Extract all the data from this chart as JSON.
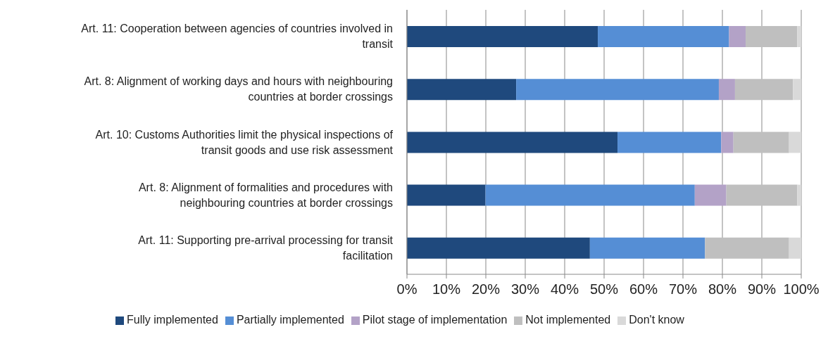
{
  "chart_data": {
    "type": "bar",
    "orientation": "horizontal",
    "stacked": true,
    "categories": [
      "Art. 11: Cooperation between agencies of countries involved in transit",
      "Art. 8: Alignment of working days and hours with neighbouring countries at border crossings",
      "Art. 10: Customs Authorities limit the physical inspections of transit goods and use risk assessment",
      "Art. 8: Alignment of formalities and procedures with neighbouring countries at border crossings",
      "Art. 11: Supporting pre-arrival processing for transit facilitation"
    ],
    "series": [
      {
        "name": "Fully implemented",
        "color": "#1f497d",
        "values": [
          48.4,
          27.7,
          53.4,
          19.9,
          46.4
        ]
      },
      {
        "name": "Partially implemented",
        "color": "#558ed5",
        "values": [
          33.3,
          51.4,
          26.3,
          53.1,
          29.2
        ]
      },
      {
        "name": "Pilot stage of implementation",
        "color": "#b3a2c7",
        "values": [
          4.2,
          4.1,
          3.1,
          8.0,
          0
        ]
      },
      {
        "name": "Not implemented",
        "color": "#bfbfbf",
        "values": [
          13.1,
          14.7,
          14.1,
          18.0,
          21.3
        ]
      },
      {
        "name": "Don't know",
        "color": "#d9d9d9",
        "values": [
          1.0,
          2.1,
          3.1,
          1.0,
          3.1
        ]
      }
    ],
    "xlim": [
      0,
      100
    ],
    "xticks": [
      {
        "value": 0,
        "label": "0%"
      },
      {
        "value": 10,
        "label": "10%"
      },
      {
        "value": 20,
        "label": "20%"
      },
      {
        "value": 30,
        "label": "30%"
      },
      {
        "value": 40,
        "label": "40%"
      },
      {
        "value": 50,
        "label": "50%"
      },
      {
        "value": 60,
        "label": "60%"
      },
      {
        "value": 70,
        "label": "70%"
      },
      {
        "value": 80,
        "label": "80%"
      },
      {
        "value": 90,
        "label": "90%"
      },
      {
        "value": 100,
        "label": "100%"
      }
    ],
    "grid": "x",
    "legend": "bottom"
  }
}
